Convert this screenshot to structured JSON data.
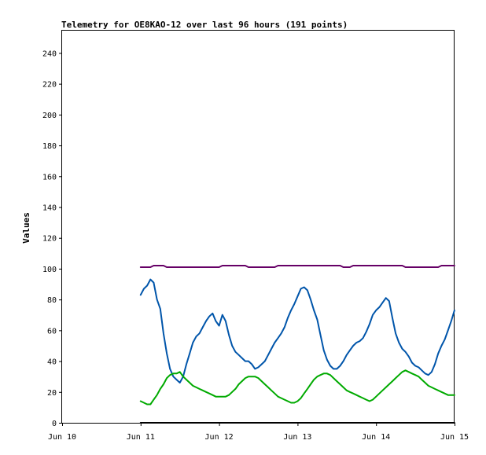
{
  "chart_data": {
    "type": "line",
    "title": "Telemetry for OE8KAO-12 over last 96 hours (191 points)",
    "xlabel": "",
    "ylabel": "Values",
    "xlim": [
      "2024-06-10T00:00",
      "2024-06-15T00:00"
    ],
    "ylim": [
      0,
      255
    ],
    "x_ticks": [
      {
        "x": "2024-06-10T00:00",
        "label": "Jun 10"
      },
      {
        "x": "2024-06-11T00:00",
        "label": "Jun 11"
      },
      {
        "x": "2024-06-12T00:00",
        "label": "Jun 12"
      },
      {
        "x": "2024-06-13T00:00",
        "label": "Jun 13"
      },
      {
        "x": "2024-06-14T00:00",
        "label": "Jun 14"
      },
      {
        "x": "2024-06-15T00:00",
        "label": "Jun 15"
      }
    ],
    "y_ticks": [
      0,
      20,
      40,
      60,
      80,
      100,
      120,
      140,
      160,
      180,
      200,
      220,
      240
    ],
    "grid": false,
    "legend": "none",
    "series": [
      {
        "color": "#660066",
        "points": [
          [
            "2024-06-11T00:00",
            101
          ],
          [
            "2024-06-11T03:00",
            101
          ],
          [
            "2024-06-11T04:00",
            102
          ],
          [
            "2024-06-11T07:00",
            102
          ],
          [
            "2024-06-11T08:00",
            101
          ],
          [
            "2024-06-12T00:00",
            101
          ],
          [
            "2024-06-12T01:00",
            102
          ],
          [
            "2024-06-12T08:00",
            102
          ],
          [
            "2024-06-12T09:00",
            101
          ],
          [
            "2024-06-12T17:00",
            101
          ],
          [
            "2024-06-12T18:00",
            102
          ],
          [
            "2024-06-13T13:00",
            102
          ],
          [
            "2024-06-13T14:00",
            101
          ],
          [
            "2024-06-13T16:00",
            101
          ],
          [
            "2024-06-13T17:00",
            102
          ],
          [
            "2024-06-14T08:00",
            102
          ],
          [
            "2024-06-14T09:00",
            101
          ],
          [
            "2024-06-14T19:00",
            101
          ],
          [
            "2024-06-14T20:00",
            102
          ],
          [
            "2024-06-14T23:59",
            102
          ]
        ]
      },
      {
        "color": "#0055aa",
        "points": [
          [
            "2024-06-11T00:00",
            83
          ],
          [
            "2024-06-11T01:00",
            87
          ],
          [
            "2024-06-11T02:00",
            89
          ],
          [
            "2024-06-11T03:00",
            93
          ],
          [
            "2024-06-11T04:00",
            91
          ],
          [
            "2024-06-11T05:00",
            80
          ],
          [
            "2024-06-11T06:00",
            74
          ],
          [
            "2024-06-11T07:00",
            58
          ],
          [
            "2024-06-11T08:00",
            45
          ],
          [
            "2024-06-11T09:00",
            35
          ],
          [
            "2024-06-11T10:00",
            30
          ],
          [
            "2024-06-11T11:00",
            28
          ],
          [
            "2024-06-11T12:00",
            26
          ],
          [
            "2024-06-11T13:00",
            30
          ],
          [
            "2024-06-11T14:00",
            38
          ],
          [
            "2024-06-11T15:00",
            45
          ],
          [
            "2024-06-11T16:00",
            52
          ],
          [
            "2024-06-11T17:00",
            56
          ],
          [
            "2024-06-11T18:00",
            58
          ],
          [
            "2024-06-11T19:00",
            62
          ],
          [
            "2024-06-11T20:00",
            66
          ],
          [
            "2024-06-11T21:00",
            69
          ],
          [
            "2024-06-11T22:00",
            71
          ],
          [
            "2024-06-11T23:00",
            66
          ],
          [
            "2024-06-12T00:00",
            63
          ],
          [
            "2024-06-12T01:00",
            70
          ],
          [
            "2024-06-12T02:00",
            66
          ],
          [
            "2024-06-12T03:00",
            57
          ],
          [
            "2024-06-12T04:00",
            50
          ],
          [
            "2024-06-12T05:00",
            46
          ],
          [
            "2024-06-12T06:00",
            44
          ],
          [
            "2024-06-12T07:00",
            42
          ],
          [
            "2024-06-12T08:00",
            40
          ],
          [
            "2024-06-12T09:00",
            40
          ],
          [
            "2024-06-12T10:00",
            38
          ],
          [
            "2024-06-12T11:00",
            35
          ],
          [
            "2024-06-12T12:00",
            36
          ],
          [
            "2024-06-12T13:00",
            38
          ],
          [
            "2024-06-12T14:00",
            40
          ],
          [
            "2024-06-12T15:00",
            44
          ],
          [
            "2024-06-12T16:00",
            48
          ],
          [
            "2024-06-12T17:00",
            52
          ],
          [
            "2024-06-12T18:00",
            55
          ],
          [
            "2024-06-12T19:00",
            58
          ],
          [
            "2024-06-12T20:00",
            62
          ],
          [
            "2024-06-12T21:00",
            68
          ],
          [
            "2024-06-12T22:00",
            73
          ],
          [
            "2024-06-12T23:00",
            77
          ],
          [
            "2024-06-13T00:00",
            82
          ],
          [
            "2024-06-13T01:00",
            87
          ],
          [
            "2024-06-13T02:00",
            88
          ],
          [
            "2024-06-13T03:00",
            86
          ],
          [
            "2024-06-13T04:00",
            80
          ],
          [
            "2024-06-13T05:00",
            73
          ],
          [
            "2024-06-13T06:00",
            67
          ],
          [
            "2024-06-13T07:00",
            57
          ],
          [
            "2024-06-13T08:00",
            47
          ],
          [
            "2024-06-13T09:00",
            41
          ],
          [
            "2024-06-13T10:00",
            37
          ],
          [
            "2024-06-13T11:00",
            35
          ],
          [
            "2024-06-13T12:00",
            35
          ],
          [
            "2024-06-13T13:00",
            37
          ],
          [
            "2024-06-13T14:00",
            40
          ],
          [
            "2024-06-13T15:00",
            44
          ],
          [
            "2024-06-13T16:00",
            47
          ],
          [
            "2024-06-13T17:00",
            50
          ],
          [
            "2024-06-13T18:00",
            52
          ],
          [
            "2024-06-13T19:00",
            53
          ],
          [
            "2024-06-13T20:00",
            55
          ],
          [
            "2024-06-13T21:00",
            59
          ],
          [
            "2024-06-13T22:00",
            64
          ],
          [
            "2024-06-13T23:00",
            70
          ],
          [
            "2024-06-14T00:00",
            73
          ],
          [
            "2024-06-14T01:00",
            75
          ],
          [
            "2024-06-14T02:00",
            78
          ],
          [
            "2024-06-14T03:00",
            81
          ],
          [
            "2024-06-14T04:00",
            79
          ],
          [
            "2024-06-14T05:00",
            68
          ],
          [
            "2024-06-14T06:00",
            58
          ],
          [
            "2024-06-14T07:00",
            52
          ],
          [
            "2024-06-14T08:00",
            48
          ],
          [
            "2024-06-14T09:00",
            46
          ],
          [
            "2024-06-14T10:00",
            43
          ],
          [
            "2024-06-14T11:00",
            39
          ],
          [
            "2024-06-14T12:00",
            37
          ],
          [
            "2024-06-14T13:00",
            36
          ],
          [
            "2024-06-14T14:00",
            34
          ],
          [
            "2024-06-14T15:00",
            32
          ],
          [
            "2024-06-14T16:00",
            31
          ],
          [
            "2024-06-14T17:00",
            33
          ],
          [
            "2024-06-14T18:00",
            38
          ],
          [
            "2024-06-14T19:00",
            45
          ],
          [
            "2024-06-14T20:00",
            50
          ],
          [
            "2024-06-14T21:00",
            54
          ],
          [
            "2024-06-14T22:00",
            60
          ],
          [
            "2024-06-14T23:00",
            66
          ],
          [
            "2024-06-14T23:59",
            73
          ]
        ]
      },
      {
        "color": "#00aa00",
        "points": [
          [
            "2024-06-11T00:00",
            14
          ],
          [
            "2024-06-11T01:00",
            13
          ],
          [
            "2024-06-11T02:00",
            12
          ],
          [
            "2024-06-11T03:00",
            12
          ],
          [
            "2024-06-11T04:00",
            15
          ],
          [
            "2024-06-11T05:00",
            18
          ],
          [
            "2024-06-11T06:00",
            22
          ],
          [
            "2024-06-11T07:00",
            25
          ],
          [
            "2024-06-11T08:00",
            29
          ],
          [
            "2024-06-11T09:00",
            31
          ],
          [
            "2024-06-11T10:00",
            32
          ],
          [
            "2024-06-11T11:00",
            32
          ],
          [
            "2024-06-11T12:00",
            33
          ],
          [
            "2024-06-11T13:00",
            30
          ],
          [
            "2024-06-11T14:00",
            28
          ],
          [
            "2024-06-11T15:00",
            26
          ],
          [
            "2024-06-11T16:00",
            24
          ],
          [
            "2024-06-11T17:00",
            23
          ],
          [
            "2024-06-11T18:00",
            22
          ],
          [
            "2024-06-11T19:00",
            21
          ],
          [
            "2024-06-11T20:00",
            20
          ],
          [
            "2024-06-11T21:00",
            19
          ],
          [
            "2024-06-11T22:00",
            18
          ],
          [
            "2024-06-11T23:00",
            17
          ],
          [
            "2024-06-12T00:00",
            17
          ],
          [
            "2024-06-12T01:00",
            17
          ],
          [
            "2024-06-12T02:00",
            17
          ],
          [
            "2024-06-12T03:00",
            18
          ],
          [
            "2024-06-12T04:00",
            20
          ],
          [
            "2024-06-12T05:00",
            22
          ],
          [
            "2024-06-12T06:00",
            25
          ],
          [
            "2024-06-12T07:00",
            27
          ],
          [
            "2024-06-12T08:00",
            29
          ],
          [
            "2024-06-12T09:00",
            30
          ],
          [
            "2024-06-12T10:00",
            30
          ],
          [
            "2024-06-12T11:00",
            30
          ],
          [
            "2024-06-12T12:00",
            29
          ],
          [
            "2024-06-12T13:00",
            27
          ],
          [
            "2024-06-12T14:00",
            25
          ],
          [
            "2024-06-12T15:00",
            23
          ],
          [
            "2024-06-12T16:00",
            21
          ],
          [
            "2024-06-12T17:00",
            19
          ],
          [
            "2024-06-12T18:00",
            17
          ],
          [
            "2024-06-12T19:00",
            16
          ],
          [
            "2024-06-12T20:00",
            15
          ],
          [
            "2024-06-12T21:00",
            14
          ],
          [
            "2024-06-12T22:00",
            13
          ],
          [
            "2024-06-12T23:00",
            13
          ],
          [
            "2024-06-13T00:00",
            14
          ],
          [
            "2024-06-13T01:00",
            16
          ],
          [
            "2024-06-13T02:00",
            19
          ],
          [
            "2024-06-13T03:00",
            22
          ],
          [
            "2024-06-13T04:00",
            25
          ],
          [
            "2024-06-13T05:00",
            28
          ],
          [
            "2024-06-13T06:00",
            30
          ],
          [
            "2024-06-13T07:00",
            31
          ],
          [
            "2024-06-13T08:00",
            32
          ],
          [
            "2024-06-13T09:00",
            32
          ],
          [
            "2024-06-13T10:00",
            31
          ],
          [
            "2024-06-13T11:00",
            29
          ],
          [
            "2024-06-13T12:00",
            27
          ],
          [
            "2024-06-13T13:00",
            25
          ],
          [
            "2024-06-13T14:00",
            23
          ],
          [
            "2024-06-13T15:00",
            21
          ],
          [
            "2024-06-13T16:00",
            20
          ],
          [
            "2024-06-13T17:00",
            19
          ],
          [
            "2024-06-13T18:00",
            18
          ],
          [
            "2024-06-13T19:00",
            17
          ],
          [
            "2024-06-13T20:00",
            16
          ],
          [
            "2024-06-13T21:00",
            15
          ],
          [
            "2024-06-13T22:00",
            14
          ],
          [
            "2024-06-13T23:00",
            15
          ],
          [
            "2024-06-14T00:00",
            17
          ],
          [
            "2024-06-14T01:00",
            19
          ],
          [
            "2024-06-14T02:00",
            21
          ],
          [
            "2024-06-14T03:00",
            23
          ],
          [
            "2024-06-14T04:00",
            25
          ],
          [
            "2024-06-14T05:00",
            27
          ],
          [
            "2024-06-14T06:00",
            29
          ],
          [
            "2024-06-14T07:00",
            31
          ],
          [
            "2024-06-14T08:00",
            33
          ],
          [
            "2024-06-14T09:00",
            34
          ],
          [
            "2024-06-14T10:00",
            33
          ],
          [
            "2024-06-14T11:00",
            32
          ],
          [
            "2024-06-14T12:00",
            31
          ],
          [
            "2024-06-14T13:00",
            30
          ],
          [
            "2024-06-14T14:00",
            28
          ],
          [
            "2024-06-14T15:00",
            26
          ],
          [
            "2024-06-14T16:00",
            24
          ],
          [
            "2024-06-14T17:00",
            23
          ],
          [
            "2024-06-14T18:00",
            22
          ],
          [
            "2024-06-14T19:00",
            21
          ],
          [
            "2024-06-14T20:00",
            20
          ],
          [
            "2024-06-14T21:00",
            19
          ],
          [
            "2024-06-14T22:00",
            18
          ],
          [
            "2024-06-14T23:00",
            18
          ],
          [
            "2024-06-14T23:59",
            18
          ]
        ]
      },
      {
        "color": "#000000",
        "points": [
          [
            "2024-06-11T00:00",
            0
          ],
          [
            "2024-06-14T23:59",
            0
          ]
        ]
      }
    ]
  }
}
